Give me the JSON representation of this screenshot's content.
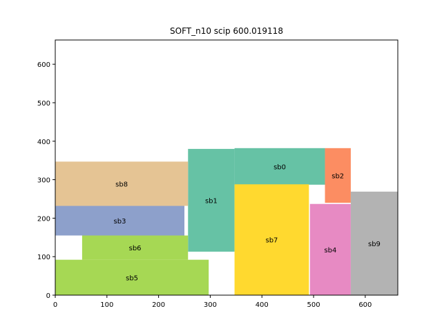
{
  "chart_data": {
    "type": "rectangles",
    "title": "SOFT_n10 scip 600.019118",
    "xlabel": "",
    "ylabel": "",
    "xlim": [
      0,
      663
    ],
    "ylim": [
      0,
      663
    ],
    "xticks": [
      0,
      100,
      200,
      300,
      400,
      500,
      600
    ],
    "yticks": [
      0,
      100,
      200,
      300,
      400,
      500,
      600
    ],
    "grid": false,
    "blocks": [
      {
        "name": "sb0",
        "x": 347,
        "y": 287,
        "w": 175,
        "h": 95,
        "color": "#66c2a5"
      },
      {
        "name": "sb1",
        "x": 257,
        "y": 113,
        "w": 90,
        "h": 267,
        "color": "#66c2a5"
      },
      {
        "name": "sb2",
        "x": 522,
        "y": 240,
        "w": 50,
        "h": 142,
        "color": "#fc8d62"
      },
      {
        "name": "sb3",
        "x": 0,
        "y": 155,
        "w": 250,
        "h": 77,
        "color": "#8da0cb"
      },
      {
        "name": "sb4",
        "x": 493,
        "y": 0,
        "w": 79,
        "h": 237,
        "color": "#e78ac3"
      },
      {
        "name": "sb5",
        "x": 0,
        "y": 0,
        "w": 297,
        "h": 92,
        "color": "#a6d854"
      },
      {
        "name": "sb6",
        "x": 52,
        "y": 92,
        "w": 205,
        "h": 63,
        "color": "#a6d854"
      },
      {
        "name": "sb7",
        "x": 347,
        "y": 0,
        "w": 144,
        "h": 288,
        "color": "#ffd92f"
      },
      {
        "name": "sb8",
        "x": 0,
        "y": 232,
        "w": 257,
        "h": 115,
        "color": "#e5c494"
      },
      {
        "name": "sb9",
        "x": 572,
        "y": 0,
        "w": 91,
        "h": 269,
        "color": "#b3b3b3"
      }
    ]
  }
}
